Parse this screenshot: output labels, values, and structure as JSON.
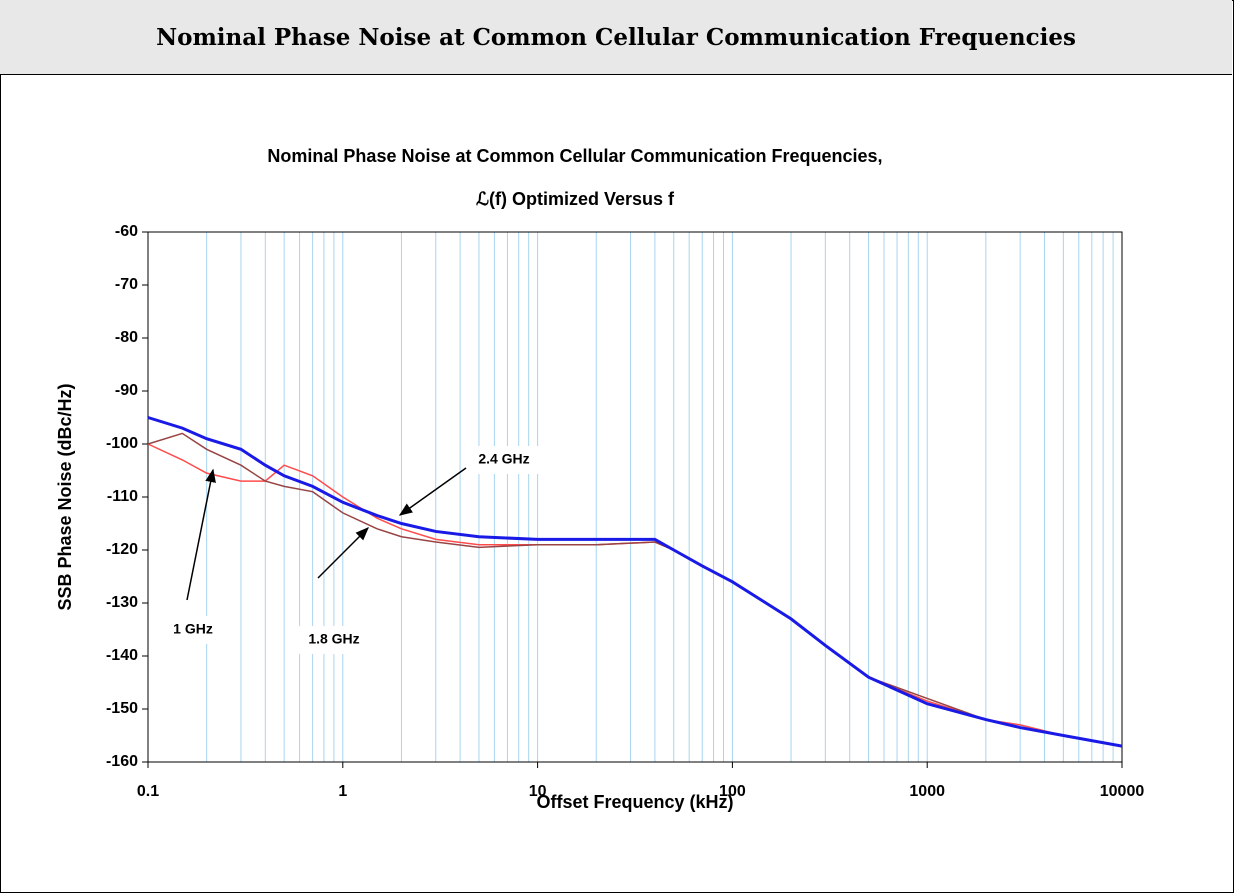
{
  "header": {
    "title": "Nominal Phase Noise at Common Cellular Communication Frequencies"
  },
  "chart_data": {
    "type": "line",
    "title": "Nominal Phase Noise at Common Cellular Communication Frequencies,",
    "subtitle": "ℒ(f) Optimized Versus f",
    "xlabel": "Offset Frequency (kHz)",
    "ylabel": "SSB Phase Noise (dBc/Hz)",
    "xscale": "log",
    "xlim": [
      0.1,
      10000
    ],
    "ylim": [
      -160,
      -60
    ],
    "xticks": [
      0.1,
      1,
      10,
      100,
      1000,
      10000
    ],
    "xminor_ticks": [
      0.2,
      0.3,
      0.4,
      0.5,
      0.6,
      0.7,
      0.8,
      0.9,
      2,
      3,
      4,
      5,
      6,
      7,
      8,
      9,
      20,
      30,
      40,
      50,
      60,
      70,
      80,
      90,
      200,
      300,
      400,
      500,
      600,
      700,
      800,
      900,
      2000,
      3000,
      4000,
      5000,
      6000,
      7000,
      8000,
      9000
    ],
    "yticks": [
      -60,
      -70,
      -80,
      -90,
      -100,
      -110,
      -120,
      -130,
      -140,
      -150,
      -160
    ],
    "grid": true,
    "x": [
      0.1,
      0.15,
      0.2,
      0.3,
      0.4,
      0.5,
      0.7,
      1,
      1.5,
      2,
      3,
      5,
      10,
      20,
      40,
      50,
      70,
      100,
      200,
      300,
      500,
      1000,
      2000,
      3000,
      5000,
      10000
    ],
    "series": [
      {
        "name": "1 GHz",
        "color": "#ff4b4b",
        "values": [
          -100,
          -103,
          -105.5,
          -107,
          -107,
          -104,
          -106,
          -110,
          -114,
          -116,
          -118,
          -119,
          -119,
          -119,
          -118.5,
          -120,
          -123,
          -126,
          -133,
          -138,
          -144,
          -148.5,
          -152,
          -153,
          -155,
          -157
        ]
      },
      {
        "name": "1.8 GHz",
        "color": "#994444",
        "values": [
          -100,
          -98,
          -101,
          -104,
          -107,
          -108,
          -109,
          -113,
          -116,
          -117.5,
          -118.5,
          -119.5,
          -119,
          -119,
          -118.5,
          -120,
          -123,
          -126,
          -133,
          -138,
          -144,
          -148,
          -152,
          -153.5,
          -155,
          -157
        ]
      },
      {
        "name": "2.4 GHz",
        "color": "#1a1ae6",
        "values": [
          -95,
          -97,
          -99,
          -101,
          -104,
          -106,
          -108,
          -111,
          -113.5,
          -115,
          -116.5,
          -117.5,
          -118,
          -118,
          -118,
          -120,
          -123,
          -126,
          -133,
          -138,
          -144,
          -149,
          -152,
          -153.5,
          -155,
          -157
        ]
      }
    ]
  }
}
